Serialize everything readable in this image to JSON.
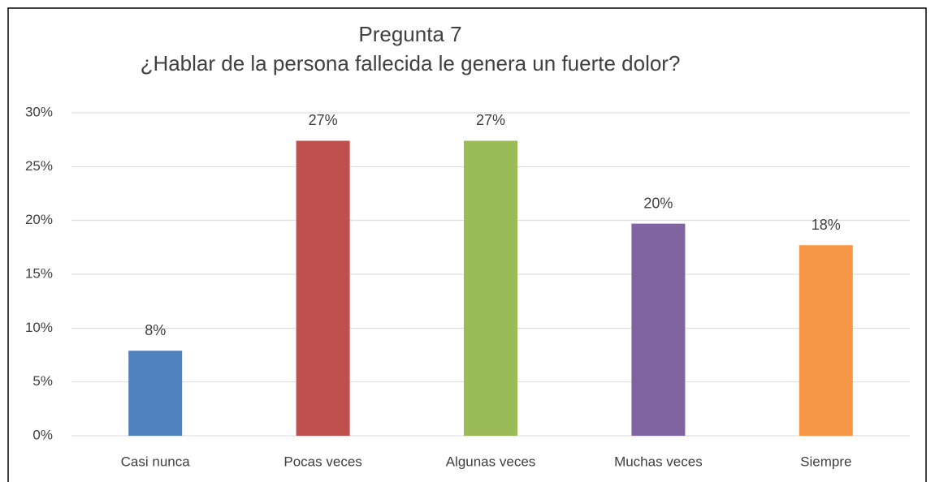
{
  "chart_data": {
    "type": "bar",
    "title": "Pregunta 7",
    "subtitle": "¿Hablar de la persona fallecida le genera un fuerte dolor?",
    "categories": [
      "Casi nunca",
      "Pocas veces",
      "Algunas veces",
      "Muchas veces",
      "Siempre"
    ],
    "values": [
      7.9,
      27.4,
      27.4,
      19.7,
      17.7
    ],
    "value_labels": [
      "8%",
      "27%",
      "27%",
      "20%",
      "18%"
    ],
    "colors": [
      "#4f81bd",
      "#c0504d",
      "#9bbb59",
      "#8064a2",
      "#f79646"
    ],
    "ylim": [
      0,
      30
    ],
    "yticks": [
      {
        "value": 0,
        "label": "0%"
      },
      {
        "value": 5,
        "label": "5%"
      },
      {
        "value": 10,
        "label": "10%"
      },
      {
        "value": 15,
        "label": "15%"
      },
      {
        "value": 20,
        "label": "20%"
      },
      {
        "value": 25,
        "label": "25%"
      },
      {
        "value": 30,
        "label": "30%"
      }
    ],
    "grid": true
  }
}
